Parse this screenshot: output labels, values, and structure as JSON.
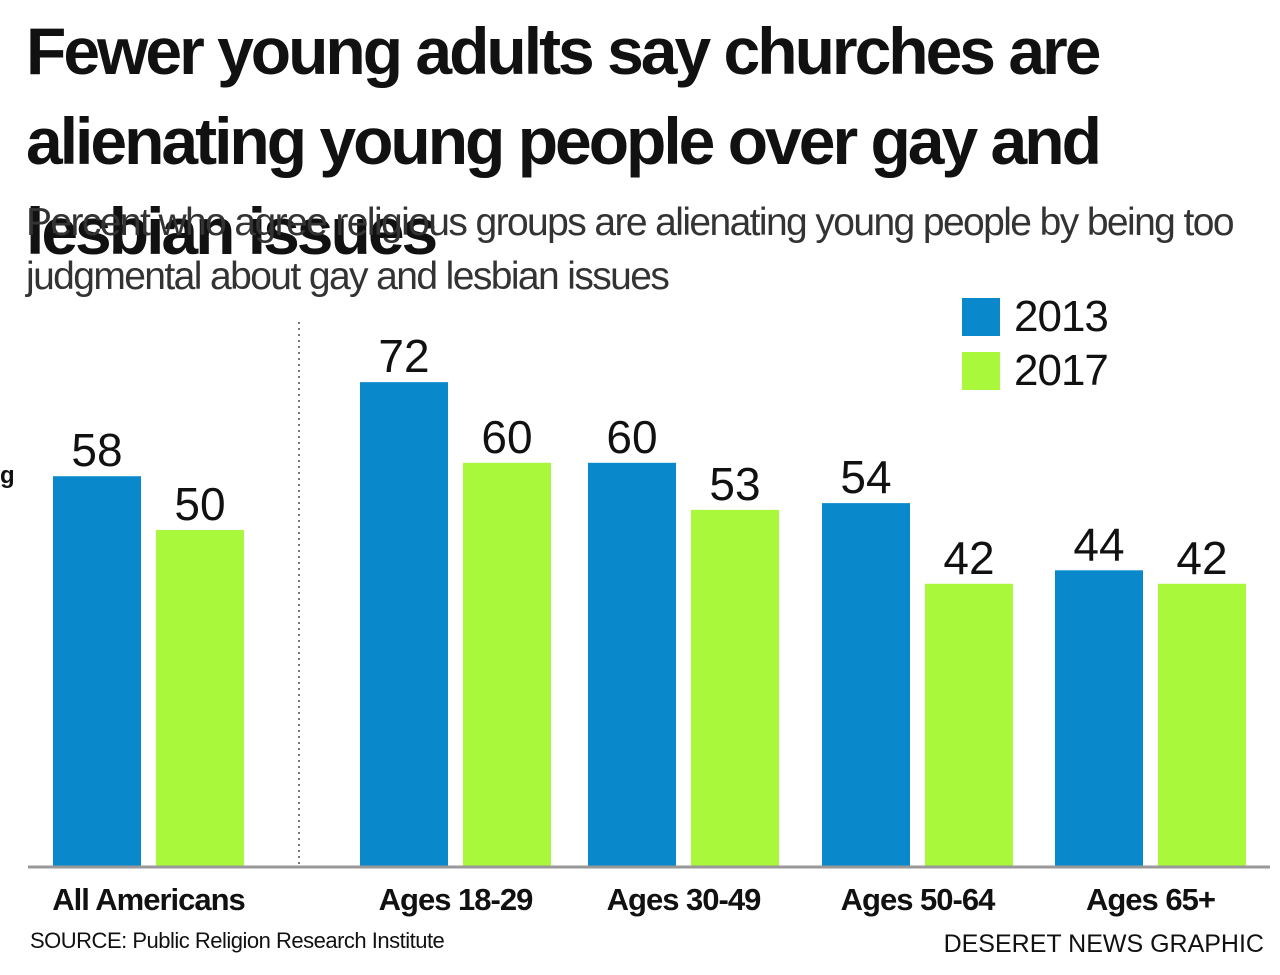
{
  "header": {
    "title": "Fewer young adults say churches are alienating young people over gay and lesbian issues",
    "subtitle": "Percent who agree religious groups are alienating young people by being too judgmental about gay and lesbian issues"
  },
  "footer": {
    "source": "SOURCE: Public Religion Research Institute",
    "credit": "DESERET NEWS GRAPHIC"
  },
  "stray_fragment": "g",
  "colors": {
    "series_2013": "#0a88cc",
    "series_2017": "#aaf83c",
    "baseline": "#999999",
    "divider": "#777777"
  },
  "chart_data": {
    "type": "bar",
    "title": "Fewer young adults say churches are alienating young people over gay and lesbian issues",
    "subtitle": "Percent who agree religious groups are alienating young people by being too judgmental about gay and lesbian issues",
    "categories": [
      "All Americans",
      "Ages 18-29",
      "Ages 30-49",
      "Ages 50-64",
      "Ages 65+"
    ],
    "series": [
      {
        "name": "2013",
        "values": [
          58,
          72,
          60,
          54,
          44
        ]
      },
      {
        "name": "2017",
        "values": [
          50,
          60,
          53,
          42,
          42
        ]
      }
    ],
    "xlabel": "",
    "ylabel": "",
    "ylim": [
      0,
      100
    ],
    "grid": false,
    "legend": "top-right",
    "data_labels": true
  }
}
